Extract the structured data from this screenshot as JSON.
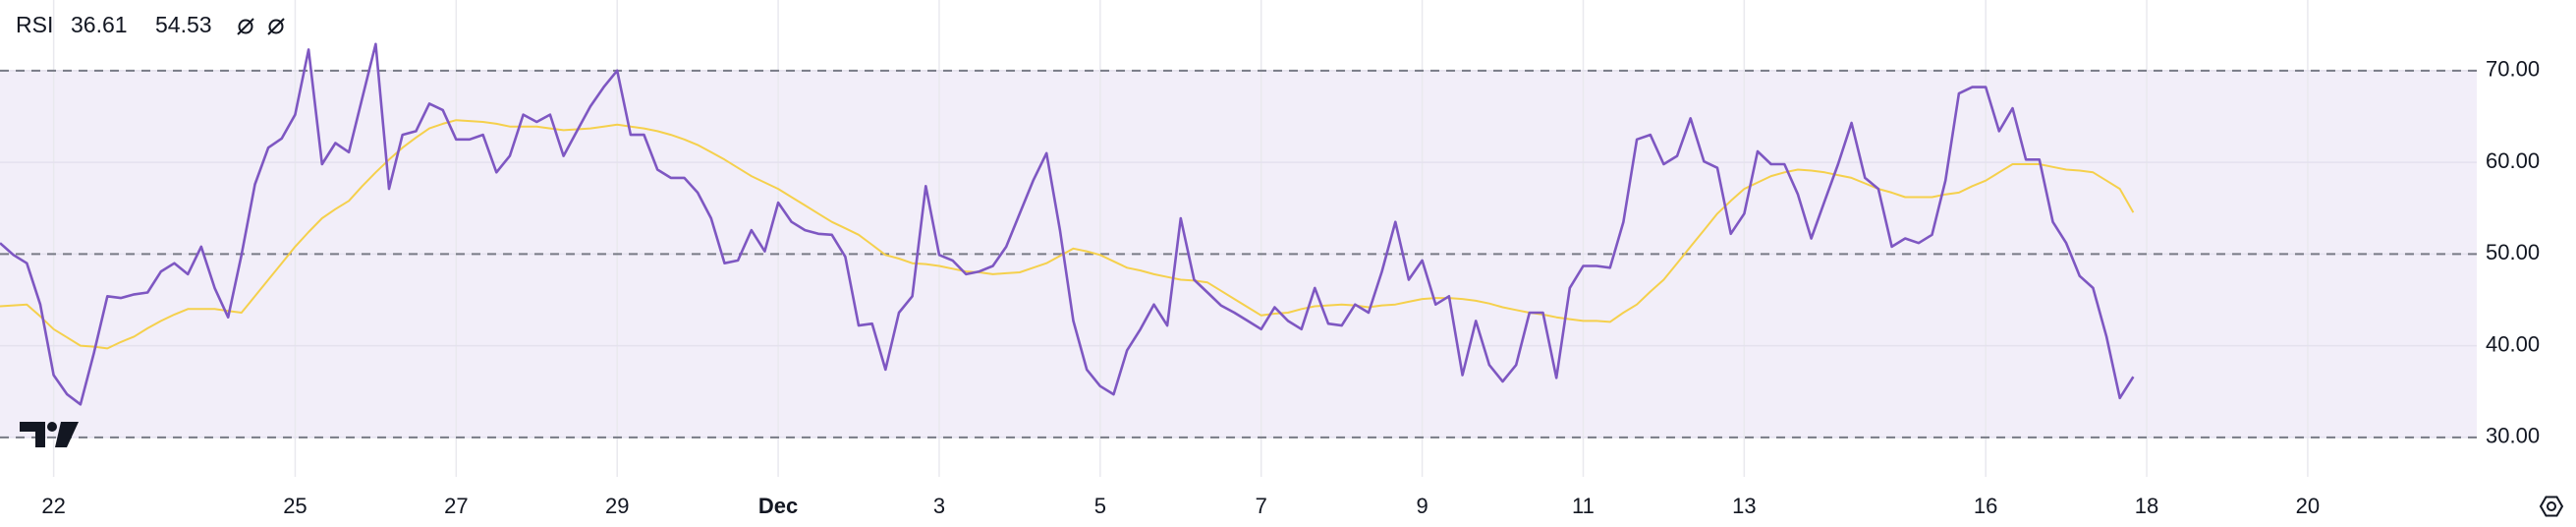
{
  "chart_data": {
    "type": "line",
    "xlim": [
      0,
      184.6
    ],
    "xticks": [
      {
        "value": 4,
        "label": "22"
      },
      {
        "value": 22,
        "label": "25"
      },
      {
        "value": 34,
        "label": "27"
      },
      {
        "value": 46,
        "label": "29"
      },
      {
        "value": 58,
        "label": "Dec"
      },
      {
        "value": 70,
        "label": "3"
      },
      {
        "value": 82,
        "label": "5"
      },
      {
        "value": 94,
        "label": "7"
      },
      {
        "value": 106,
        "label": "9"
      },
      {
        "value": 118,
        "label": "11"
      },
      {
        "value": 130,
        "label": "13"
      },
      {
        "value": 148,
        "label": "16"
      },
      {
        "value": 160,
        "label": "18"
      },
      {
        "value": 172,
        "label": "20"
      }
    ],
    "ylim": [
      25.7,
      77.7
    ],
    "yticks": [
      {
        "value": 70,
        "label": "70.00"
      },
      {
        "value": 60,
        "label": "60.00"
      },
      {
        "value": 50,
        "label": "50.00"
      },
      {
        "value": 40,
        "label": "40.00"
      },
      {
        "value": 30,
        "label": "30.00"
      }
    ],
    "levels": [
      30,
      50,
      70
    ],
    "level_color": "#787b86",
    "band_color": "#7e57c2",
    "grid": true,
    "series": [
      {
        "name": "RSI",
        "color": "#7e57c2",
        "values": [
          51.2,
          49.9,
          49,
          44.5,
          36.8,
          34.7,
          33.6,
          39.2,
          45.4,
          45.2,
          45.6,
          45.8,
          48.1,
          49,
          47.8,
          50.8,
          46.3,
          43.1,
          49.9,
          57.6,
          61.6,
          62.6,
          65.2,
          72.3,
          59.8,
          62.1,
          61.1,
          67,
          72.9,
          57.1,
          63,
          63.4,
          66.4,
          65.7,
          62.5,
          62.5,
          63,
          58.9,
          60.7,
          65.2,
          64.4,
          65.2,
          60.7,
          63.4,
          66.1,
          68.2,
          70,
          63,
          63,
          59.2,
          58.3,
          58.3,
          56.7,
          53.9,
          49,
          49.3,
          52.6,
          50.3,
          55.6,
          53.5,
          52.6,
          52.2,
          52.1,
          49.7,
          42.2,
          42.4,
          37.4,
          43.6,
          45.4,
          57.4,
          49.9,
          49.3,
          47.8,
          48.1,
          48.7,
          50.8,
          54.4,
          58,
          61,
          52.6,
          42.7,
          37.4,
          35.6,
          34.7,
          39.5,
          41.8,
          44.5,
          42.2,
          53.9,
          47.2,
          45.8,
          44.4,
          43.6,
          42.7,
          41.8,
          44.2,
          42.7,
          41.8,
          46.3,
          42.4,
          42.2,
          44.5,
          43.6,
          48.1,
          53.5,
          47.2,
          49.3,
          44.5,
          45.4,
          36.8,
          42.7,
          37.9,
          36.1,
          37.9,
          43.6,
          43.6,
          36.5,
          46.3,
          48.7,
          48.7,
          48.5,
          53.5,
          62.5,
          63,
          59.8,
          60.7,
          64.8,
          60.1,
          59.4,
          52.2,
          54.4,
          61.2,
          59.8,
          59.8,
          56.5,
          51.7,
          55.8,
          59.8,
          64.3,
          58.3,
          57.1,
          50.8,
          51.7,
          51.2,
          52.1,
          58,
          67.5,
          68.2,
          68.2,
          63.4,
          65.9,
          60.3,
          60.3,
          53.5,
          51.2,
          47.6,
          46.3,
          41,
          34.3,
          36.61
        ]
      },
      {
        "color": "#f5d04c",
        "values": [
          44.3,
          44.4,
          44.5,
          43.2,
          41.8,
          40.9,
          40,
          39.9,
          39.7,
          40.4,
          41,
          41.9,
          42.7,
          43.4,
          44,
          44,
          44,
          43.8,
          43.6,
          45.4,
          47.2,
          49,
          50.8,
          52.4,
          53.9,
          54.9,
          55.8,
          57.4,
          58.9,
          60.3,
          61.6,
          62.7,
          63.7,
          64.2,
          64.6,
          64.5,
          64.4,
          64.2,
          63.9,
          63.9,
          63.9,
          63.7,
          63.5,
          63.6,
          63.7,
          63.9,
          64.1,
          63.9,
          63.7,
          63.4,
          63,
          62.5,
          61.9,
          61.1,
          60.3,
          59.4,
          58.5,
          57.8,
          57.1,
          56.2,
          55.3,
          54.4,
          53.5,
          52.8,
          52.1,
          51,
          49.9,
          49.5,
          49,
          48.9,
          48.7,
          48.4,
          48.1,
          48,
          47.8,
          47.9,
          48,
          48.5,
          49,
          49.8,
          50.6,
          50.3,
          49.9,
          49.2,
          48.5,
          48.2,
          47.8,
          47.5,
          47.2,
          47.1,
          46.9,
          46,
          45.1,
          44.2,
          43.3,
          43.5,
          43.6,
          44,
          44.3,
          44.4,
          44.5,
          44.4,
          44.2,
          44.4,
          44.5,
          44.8,
          45.1,
          45.2,
          45.2,
          45.1,
          44.9,
          44.6,
          44.2,
          43.9,
          43.6,
          43.4,
          43.1,
          42.9,
          42.7,
          42.7,
          42.6,
          43.6,
          44.5,
          45.9,
          47.2,
          49,
          50.8,
          52.6,
          54.4,
          55.8,
          57.1,
          57.8,
          58.5,
          58.9,
          59.2,
          59.1,
          58.9,
          58.6,
          58.3,
          57.7,
          57.1,
          56.7,
          56.2,
          56.2,
          56.2,
          56.5,
          56.7,
          57.4,
          58,
          58.9,
          59.8,
          59.8,
          59.8,
          59.5,
          59.2,
          59.1,
          58.9,
          58,
          57.1,
          54.53
        ]
      }
    ]
  }
}
